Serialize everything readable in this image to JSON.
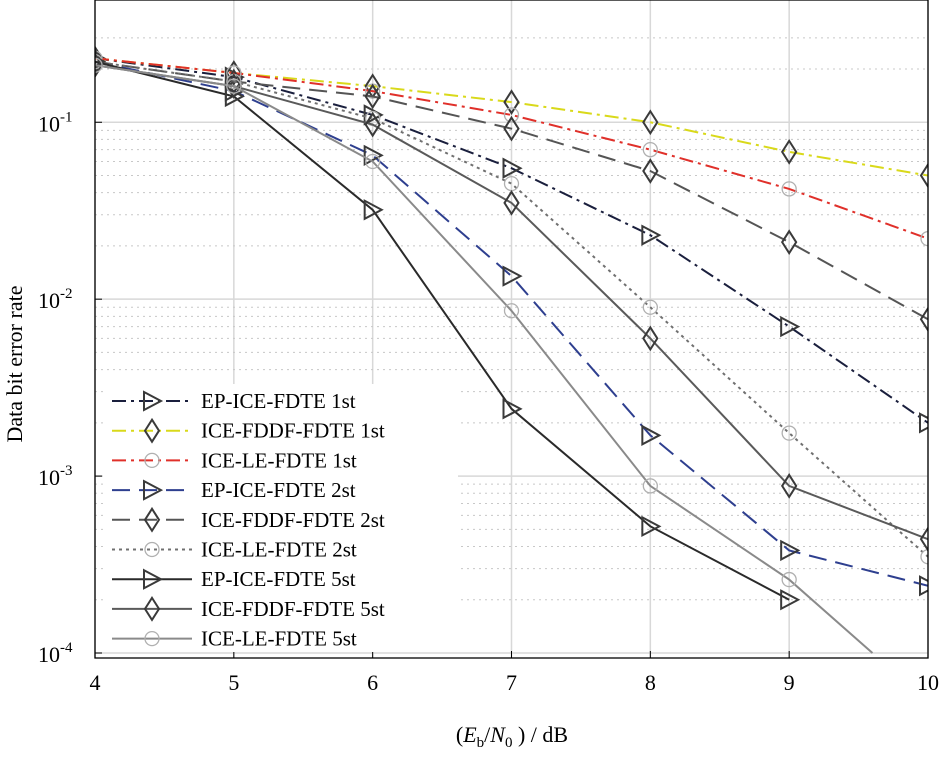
{
  "chart_data": {
    "type": "line",
    "xlabel": {
      "prefix": "(",
      "E": "E",
      "b": "b",
      "slash": "/",
      "N": "N",
      "zero": "0",
      "suffix": " ) / dB"
    },
    "ylabel": "Data bit error rate",
    "x_ticks": [
      "4",
      "5",
      "6",
      "7",
      "8",
      "9",
      "10"
    ],
    "y_ticks": [
      {
        "base": "10",
        "exp": "-1",
        "value": 0.1
      },
      {
        "base": "10",
        "exp": "-2",
        "value": 0.01
      },
      {
        "base": "10",
        "exp": "-3",
        "value": 0.001
      },
      {
        "base": "10",
        "exp": "-4",
        "value": 0.0001
      }
    ],
    "xlim": [
      4,
      10
    ],
    "ylim": [
      0.0001,
      0.35
    ],
    "y_scale": "log",
    "grid": true,
    "legend_position": "bottom-left",
    "series": [
      {
        "name": "EP-ICE-FDTE 1st",
        "color": "#1a1f3d",
        "dash": "dashdot",
        "marker": "triangle-right",
        "x": [
          4,
          5,
          6,
          7,
          8,
          9,
          10
        ],
        "y": [
          0.23,
          0.18,
          0.11,
          0.055,
          0.023,
          0.007,
          0.002
        ]
      },
      {
        "name": "ICE-FDDF-FDTE 1st",
        "color": "#d9d91a",
        "dash": "dashdot",
        "marker": "diamond",
        "x": [
          4,
          5,
          6,
          7,
          8,
          9,
          10
        ],
        "y": [
          0.23,
          0.19,
          0.16,
          0.13,
          0.1,
          0.068,
          0.05
        ]
      },
      {
        "name": "ICE-LE-FDTE 1st",
        "color": "#e0302a",
        "dash": "dashdot",
        "marker": "circle",
        "x": [
          4,
          5,
          6,
          7,
          8,
          9,
          10
        ],
        "y": [
          0.23,
          0.19,
          0.15,
          0.11,
          0.07,
          0.042,
          0.022
        ]
      },
      {
        "name": "EP-ICE-FDTE 2st",
        "color": "#2e3f8f",
        "dash": "dash",
        "marker": "triangle-right",
        "x": [
          4,
          5,
          6,
          7,
          8,
          9,
          10
        ],
        "y": [
          0.22,
          0.15,
          0.065,
          0.0135,
          0.0017,
          0.00038,
          0.00024
        ]
      },
      {
        "name": "ICE-FDDF-FDTE 2st",
        "color": "#555555",
        "dash": "dash",
        "marker": "diamond",
        "x": [
          4,
          5,
          6,
          7,
          8,
          9,
          10
        ],
        "y": [
          0.22,
          0.17,
          0.14,
          0.092,
          0.053,
          0.021,
          0.0077
        ]
      },
      {
        "name": "ICE-LE-FDTE 2st",
        "color": "#707070",
        "dash": "dot",
        "marker": "circle",
        "x": [
          4,
          5,
          6,
          7,
          8,
          9,
          10
        ],
        "y": [
          0.22,
          0.17,
          0.105,
          0.045,
          0.009,
          0.00175,
          0.00035
        ]
      },
      {
        "name": "EP-ICE-FDTE 5st",
        "color": "#2a2a2a",
        "dash": "solid",
        "marker": "triangle-right",
        "x": [
          4,
          5,
          6,
          7,
          8,
          9
        ],
        "y": [
          0.22,
          0.14,
          0.032,
          0.0024,
          0.00052,
          0.0002
        ]
      },
      {
        "name": "ICE-FDDF-FDTE 5st",
        "color": "#5a5a5a",
        "dash": "solid",
        "marker": "diamond",
        "x": [
          4,
          5,
          6,
          7,
          8,
          9,
          10
        ],
        "y": [
          0.21,
          0.16,
          0.097,
          0.035,
          0.006,
          0.00088,
          0.00044
        ]
      },
      {
        "name": "ICE-LE-FDTE 5st",
        "color": "#8a8a8a",
        "dash": "solid",
        "marker": "circle",
        "x": [
          4,
          5,
          6,
          7,
          8,
          9,
          9.6
        ],
        "y": [
          0.21,
          0.16,
          0.06,
          0.0086,
          0.00088,
          0.00026,
          0.0001
        ]
      }
    ]
  }
}
